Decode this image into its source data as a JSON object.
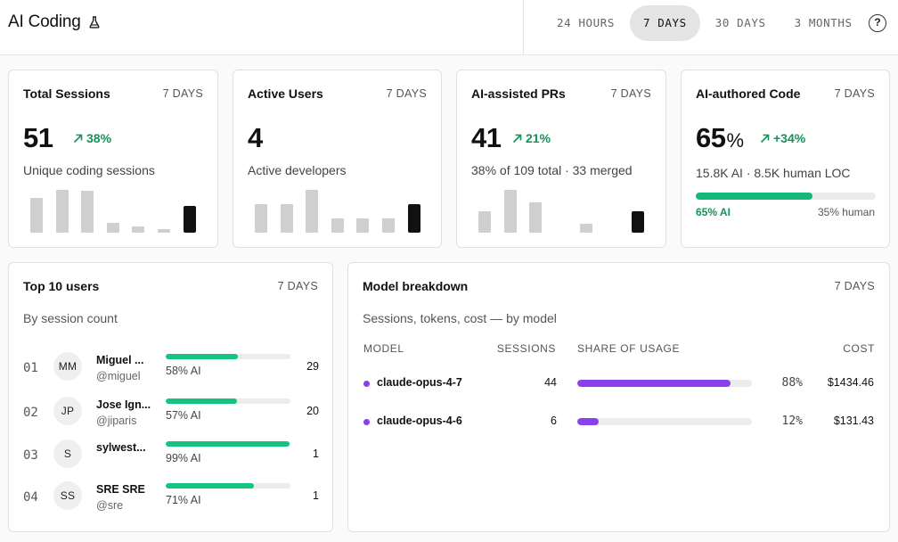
{
  "app": {
    "title": "AI Coding",
    "icon": "flask-icon"
  },
  "ranges": [
    {
      "label": "24 HOURS",
      "active": false
    },
    {
      "label": "7 DAYS",
      "active": true
    },
    {
      "label": "30 DAYS",
      "active": false
    },
    {
      "label": "3 MONTHS",
      "active": false
    }
  ],
  "help": {
    "label": "?"
  },
  "colors": {
    "accent_green": "#16915a",
    "bar_green": "#14c47f",
    "model_purple": "#8a40ea",
    "active_tab": "#e4e4e4"
  },
  "cards": {
    "sessions": {
      "title": "Total Sessions",
      "range": "7 DAYS",
      "value": "51",
      "delta": "38%",
      "subtitle": "Unique coding sessions",
      "bars": [
        32,
        39,
        38,
        9,
        6,
        3,
        24
      ]
    },
    "users": {
      "title": "Active Users",
      "range": "7 DAYS",
      "value": "4",
      "subtitle": "Active developers",
      "bars": [
        32,
        32,
        48,
        16,
        16,
        16,
        32
      ]
    },
    "prs": {
      "title": "AI-assisted PRs",
      "range": "7 DAYS",
      "value": "41",
      "delta": "21%",
      "subtitle": "38% of 109 total · 33 merged",
      "bars": [
        21,
        42,
        30,
        0,
        9,
        0,
        21
      ]
    },
    "code": {
      "title": "AI-authored Code",
      "range": "7 DAYS",
      "value": "65",
      "unit": "%",
      "delta": "+34%",
      "subtitle": "15.8K AI · 8.5K human LOC",
      "ai_fraction": 0.65,
      "ai_label": "65% AI",
      "human_label": "35% human"
    }
  },
  "top_users": {
    "title": "Top 10 users",
    "range": "7 DAYS",
    "subtitle": "By session count",
    "rows": [
      {
        "rank": "01",
        "initials": "MM",
        "name": "Miguel ...",
        "handle": "@miguel",
        "ai_fraction": 0.58,
        "ai_label": "58% AI",
        "count": "29"
      },
      {
        "rank": "02",
        "initials": "JP",
        "name": "Jose Ign...",
        "handle": "@jiparis",
        "ai_fraction": 0.57,
        "ai_label": "57% AI",
        "count": "20"
      },
      {
        "rank": "03",
        "initials": "S",
        "name": "sylwest...",
        "handle": "",
        "ai_fraction": 0.99,
        "ai_label": "99% AI",
        "count": "1"
      },
      {
        "rank": "04",
        "initials": "SS",
        "name": "SRE SRE",
        "handle": "@sre",
        "ai_fraction": 0.71,
        "ai_label": "71% AI",
        "count": "1"
      }
    ]
  },
  "models": {
    "title": "Model breakdown",
    "range": "7 DAYS",
    "subtitle": "Sessions, tokens, cost — by model",
    "headers": {
      "model": "MODEL",
      "sessions": "SESSIONS",
      "share": "SHARE OF USAGE",
      "cost": "COST"
    },
    "rows": [
      {
        "name": "claude-opus-4-7",
        "sessions": "44",
        "share_fraction": 0.88,
        "share_label": "88%",
        "cost": "$1434.46"
      },
      {
        "name": "claude-opus-4-6",
        "sessions": "6",
        "share_fraction": 0.12,
        "share_label": "12%",
        "cost": "$131.43"
      }
    ]
  }
}
